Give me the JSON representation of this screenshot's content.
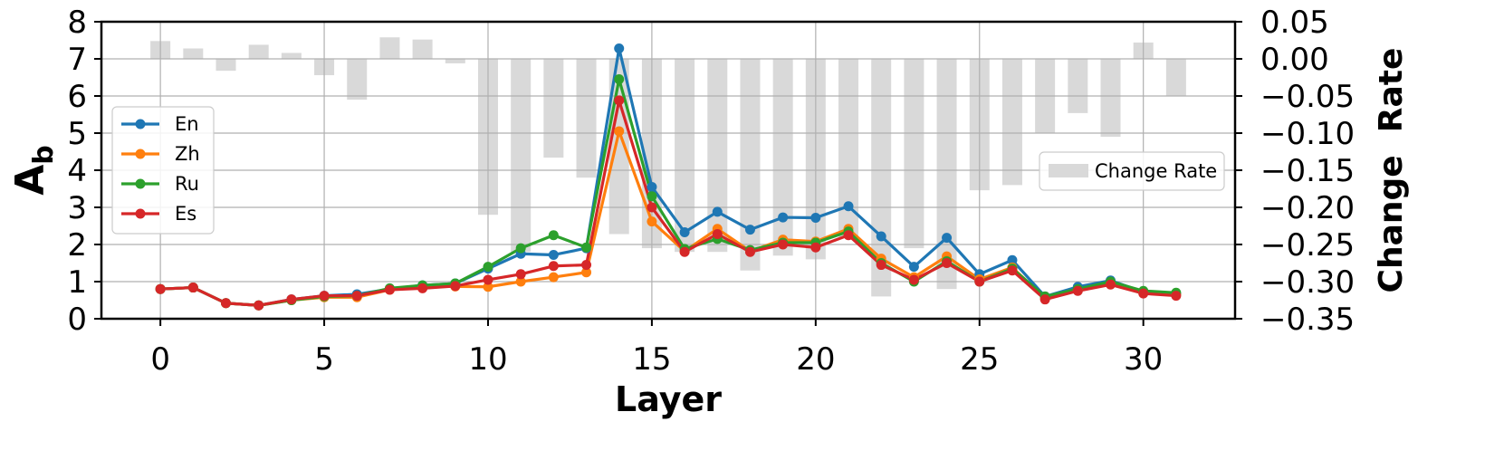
{
  "chart_data": {
    "type": "line",
    "title": "",
    "xlabel": "Layer",
    "ylabel_left": "A",
    "ylabel_left_subscript": "b",
    "ylabel_right": "Change  Rate",
    "x": [
      0,
      1,
      2,
      3,
      4,
      5,
      6,
      7,
      8,
      9,
      10,
      11,
      12,
      13,
      14,
      15,
      16,
      17,
      18,
      19,
      20,
      21,
      22,
      23,
      24,
      25,
      26,
      27,
      28,
      29,
      30,
      31
    ],
    "xlim": [
      -1.8,
      32.8
    ],
    "xticks": [
      0,
      5,
      10,
      15,
      20,
      25,
      30
    ],
    "xtick_labels": [
      "0",
      "5",
      "10",
      "15",
      "20",
      "25",
      "30"
    ],
    "ylim_left": [
      0,
      8
    ],
    "yticks_left": [
      0,
      1,
      2,
      3,
      4,
      5,
      6,
      7,
      8
    ],
    "ytick_labels_left": [
      "0",
      "1",
      "2",
      "3",
      "4",
      "5",
      "6",
      "7",
      "8"
    ],
    "ylim_right": [
      -0.35,
      0.05
    ],
    "yticks_right": [
      0.05,
      0.0,
      -0.05,
      -0.1,
      -0.15,
      -0.2,
      -0.25,
      -0.3,
      -0.35
    ],
    "ytick_labels_right": [
      "0.05",
      "0.00",
      "−0.05",
      "−0.10",
      "−0.15",
      "−0.20",
      "−0.25",
      "−0.30",
      "−0.35"
    ],
    "grid": true,
    "legend_lines_placement": "center-left",
    "legend_bars_placement": "center-right",
    "series": [
      {
        "name": "En",
        "color": "#1f77b4",
        "values": [
          0.8,
          0.84,
          0.42,
          0.36,
          0.52,
          0.62,
          0.66,
          0.8,
          0.9,
          0.95,
          1.35,
          1.75,
          1.72,
          1.9,
          7.28,
          3.55,
          2.33,
          2.88,
          2.4,
          2.73,
          2.72,
          3.03,
          2.22,
          1.4,
          2.18,
          1.2,
          1.58,
          0.6,
          0.86,
          1.03,
          0.72,
          0.67
        ]
      },
      {
        "name": "Zh",
        "color": "#ff7f0e",
        "values": [
          0.8,
          0.84,
          0.42,
          0.36,
          0.5,
          0.58,
          0.58,
          0.78,
          0.86,
          0.87,
          0.86,
          1.0,
          1.12,
          1.25,
          5.05,
          2.62,
          1.82,
          2.42,
          1.82,
          2.13,
          2.08,
          2.42,
          1.62,
          1.12,
          1.68,
          1.06,
          1.38,
          0.56,
          0.78,
          0.95,
          0.72,
          0.65
        ]
      },
      {
        "name": "Ru",
        "color": "#2ca02c",
        "values": [
          0.8,
          0.84,
          0.42,
          0.36,
          0.5,
          0.6,
          0.62,
          0.82,
          0.9,
          0.95,
          1.4,
          1.9,
          2.25,
          1.92,
          6.45,
          3.3,
          1.88,
          2.15,
          1.85,
          2.05,
          2.05,
          2.35,
          1.5,
          1.0,
          1.55,
          1.0,
          1.35,
          0.6,
          0.8,
          1.0,
          0.75,
          0.7
        ]
      },
      {
        "name": "Es",
        "color": "#d62728",
        "values": [
          0.8,
          0.84,
          0.42,
          0.36,
          0.52,
          0.62,
          0.62,
          0.78,
          0.82,
          0.88,
          1.05,
          1.2,
          1.42,
          1.45,
          5.88,
          3.0,
          1.8,
          2.28,
          1.8,
          2.0,
          1.92,
          2.25,
          1.45,
          1.05,
          1.5,
          1.0,
          1.3,
          0.52,
          0.75,
          0.92,
          0.68,
          0.62
        ]
      }
    ],
    "bars": {
      "name": "Change Rate",
      "color": "#d9d9d9",
      "values": [
        0.024,
        0.014,
        -0.016,
        0.019,
        0.008,
        -0.022,
        -0.055,
        0.029,
        0.026,
        -0.006,
        -0.21,
        -0.26,
        -0.133,
        -0.16,
        -0.236,
        -0.255,
        -0.26,
        -0.26,
        -0.285,
        -0.265,
        -0.27,
        -0.24,
        -0.32,
        -0.255,
        -0.31,
        -0.177,
        -0.17,
        -0.1,
        -0.073,
        -0.105,
        0.022,
        -0.05
      ]
    }
  }
}
